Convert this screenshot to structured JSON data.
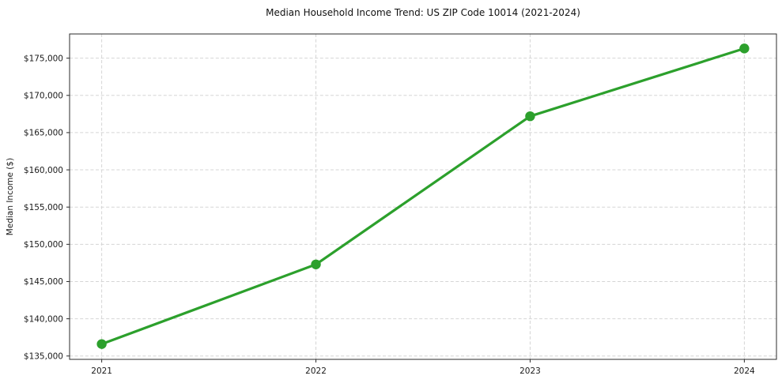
{
  "chart_data": {
    "type": "line",
    "title": "Median Household Income Trend: US ZIP Code 10014 (2021-2024)",
    "xlabel": "",
    "ylabel": "Median Income ($)",
    "x": [
      2021,
      2022,
      2023,
      2024
    ],
    "xtick_labels": [
      "2021",
      "2022",
      "2023",
      "2024"
    ],
    "yticks": [
      135000,
      140000,
      145000,
      150000,
      155000,
      160000,
      165000,
      170000,
      175000
    ],
    "ytick_labels": [
      "$135,000",
      "$140,000",
      "$145,000",
      "$150,000",
      "$155,000",
      "$160,000",
      "$165,000",
      "$170,000",
      "$175,000"
    ],
    "series": [
      {
        "name": "Median Household Income",
        "values": [
          136600,
          147300,
          167200,
          176300
        ],
        "color": "#2ca02c"
      }
    ],
    "xlim": [
      2020.85,
      2024.15
    ],
    "ylim": [
      134550,
      178250
    ],
    "grid": true,
    "grid_style": "dashed",
    "legend_position": "none",
    "marker": "circle",
    "colors": {
      "line": "#2ca02c",
      "grid": "#d5d5d5",
      "spine": "#2b2b2b",
      "text": "#1a1a1a",
      "background": "#ffffff"
    }
  }
}
